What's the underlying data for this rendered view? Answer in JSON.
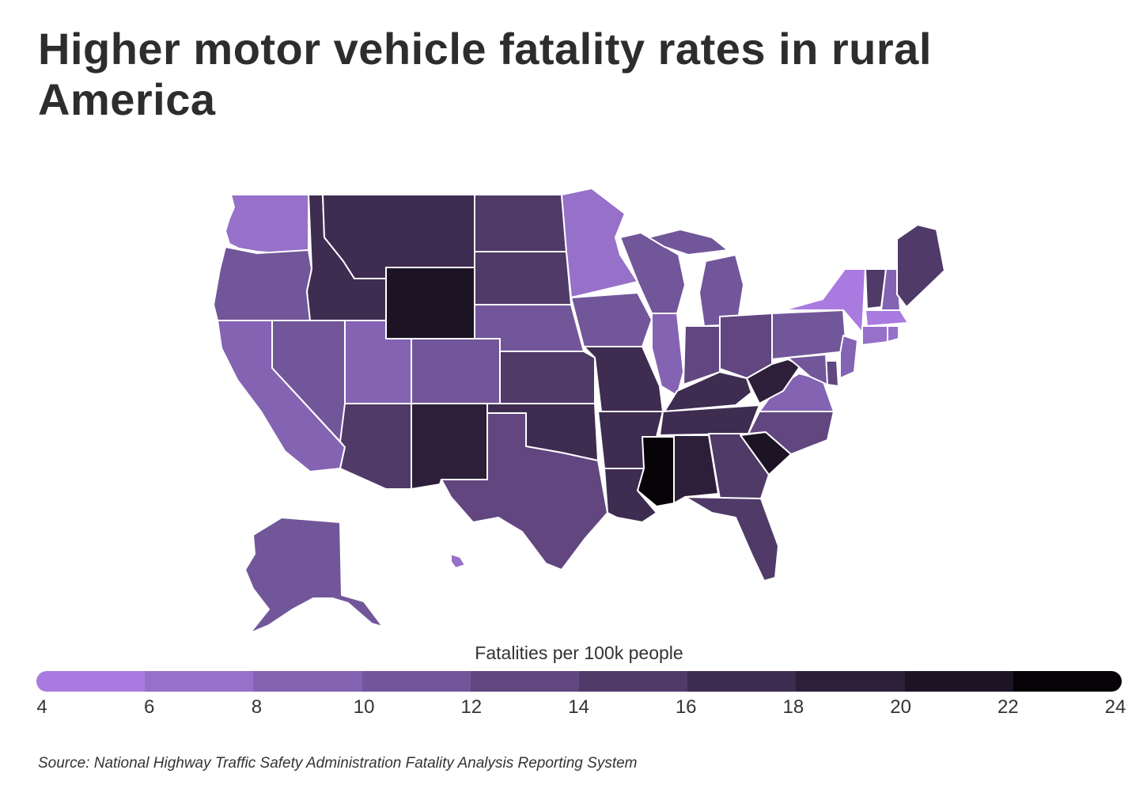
{
  "title": "Higher motor vehicle fatality rates in rural America",
  "legend": {
    "title": "Fatalities per 100k people",
    "ticks": [
      "4",
      "6",
      "8",
      "10",
      "12",
      "14",
      "16",
      "18",
      "20",
      "22",
      "24"
    ],
    "colors": [
      "#a97be0",
      "#9670c9",
      "#8463b3",
      "#72569a",
      "#614680",
      "#4f3a68",
      "#3e2c51",
      "#2d1f3a",
      "#1c1325",
      "#050306"
    ]
  },
  "source": "Source: National Highway Traffic Safety Administration Fatality Analysis Reporting System",
  "chart_data": {
    "type": "choropleth",
    "metric": "Fatalities per 100k people",
    "scale": [
      4,
      24
    ],
    "states": [
      {
        "state": "WA",
        "value": 7
      },
      {
        "state": "OR",
        "value": 11
      },
      {
        "state": "CA",
        "value": 9
      },
      {
        "state": "NV",
        "value": 11
      },
      {
        "state": "ID",
        "value": 16
      },
      {
        "state": "MT",
        "value": 17
      },
      {
        "state": "WY",
        "value": 21
      },
      {
        "state": "UT",
        "value": 9
      },
      {
        "state": "CO",
        "value": 11
      },
      {
        "state": "AZ",
        "value": 15
      },
      {
        "state": "NM",
        "value": 19
      },
      {
        "state": "ND",
        "value": 14
      },
      {
        "state": "SD",
        "value": 15
      },
      {
        "state": "NE",
        "value": 11
      },
      {
        "state": "KS",
        "value": 15
      },
      {
        "state": "OK",
        "value": 17
      },
      {
        "state": "TX",
        "value": 13
      },
      {
        "state": "MN",
        "value": 7
      },
      {
        "state": "IA",
        "value": 11
      },
      {
        "state": "MO",
        "value": 16
      },
      {
        "state": "AR",
        "value": 17
      },
      {
        "state": "LA",
        "value": 17
      },
      {
        "state": "WI",
        "value": 11
      },
      {
        "state": "IL",
        "value": 9
      },
      {
        "state": "MI",
        "value": 11
      },
      {
        "state": "IN",
        "value": 13
      },
      {
        "state": "OH",
        "value": 12
      },
      {
        "state": "KY",
        "value": 17
      },
      {
        "state": "TN",
        "value": 16
      },
      {
        "state": "MS",
        "value": 23
      },
      {
        "state": "AL",
        "value": 19
      },
      {
        "state": "GA",
        "value": 14
      },
      {
        "state": "FL",
        "value": 15
      },
      {
        "state": "SC",
        "value": 21
      },
      {
        "state": "NC",
        "value": 13
      },
      {
        "state": "VA",
        "value": 9
      },
      {
        "state": "WV",
        "value": 18
      },
      {
        "state": "PA",
        "value": 10
      },
      {
        "state": "NY",
        "value": 5
      },
      {
        "state": "VT",
        "value": 14
      },
      {
        "state": "NH",
        "value": 9
      },
      {
        "state": "ME",
        "value": 14
      },
      {
        "state": "MA",
        "value": 5
      },
      {
        "state": "RI",
        "value": 7
      },
      {
        "state": "CT",
        "value": 7
      },
      {
        "state": "NJ",
        "value": 9
      },
      {
        "state": "DE",
        "value": 13
      },
      {
        "state": "MD",
        "value": 11
      },
      {
        "state": "AK",
        "value": 11
      },
      {
        "state": "HI",
        "value": 7
      }
    ]
  }
}
